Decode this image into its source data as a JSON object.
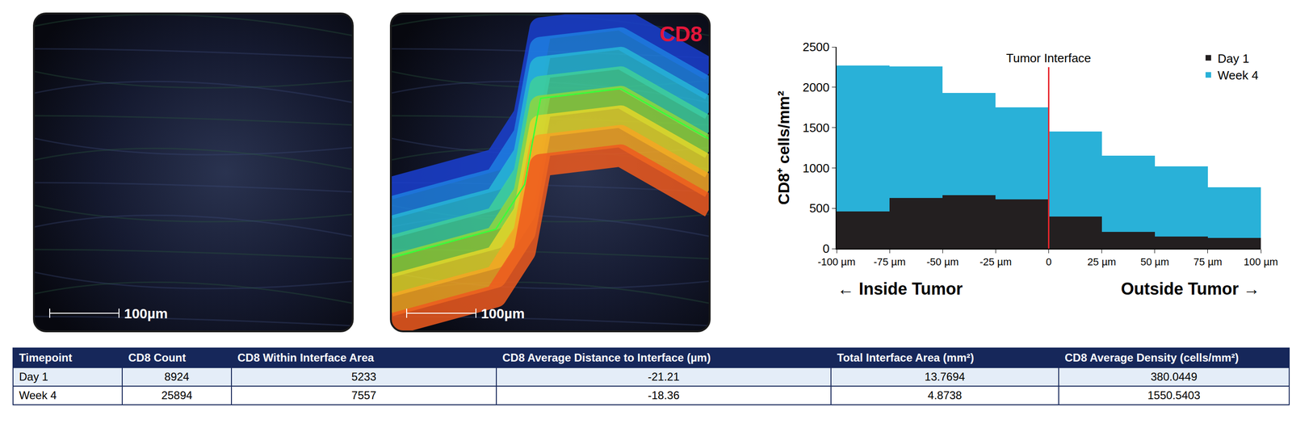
{
  "images": [
    {
      "scale_bar": "100µm"
    },
    {
      "label": "CD8",
      "scale_bar": "100µm"
    }
  ],
  "chart_data": {
    "type": "histogram",
    "bins": [
      -100,
      -75,
      -50,
      -25,
      0,
      25,
      50,
      75,
      100
    ],
    "series": [
      {
        "name": "Day 1",
        "color": "#231f20",
        "values": [
          460,
          630,
          660,
          610,
          400,
          210,
          150,
          130
        ]
      },
      {
        "name": "Week 4",
        "color": "#29b1d8",
        "values": [
          2270,
          2260,
          1930,
          1750,
          1450,
          1150,
          1020,
          760
        ]
      }
    ],
    "ylabel": "CD8⁺ cells/mm²",
    "xlabel_left": "← Inside Tumor",
    "xlabel_right": "Outside Tumor →",
    "annotations": [
      {
        "text": "Tumor Interface",
        "x": 0,
        "color": "#e8262d"
      }
    ],
    "xlim": [
      -100,
      100
    ],
    "xticks": [
      {
        "value": -100,
        "label": "-100 µm"
      },
      {
        "value": -75,
        "label": "-75 µm"
      },
      {
        "value": -50,
        "label": "-50 µm"
      },
      {
        "value": -25,
        "label": "-25 µm"
      },
      0,
      {
        "value": 25,
        "label": "25 µm"
      },
      {
        "value": 50,
        "label": "50 µm"
      },
      {
        "value": 75,
        "label": "75 µm"
      },
      {
        "value": 100,
        "label": "100 µm"
      }
    ],
    "ylim": [
      0,
      2500
    ],
    "yticks": [
      0,
      500,
      1000,
      1500,
      2000,
      2500
    ],
    "legend": "top right",
    "grid": false
  },
  "table": {
    "header": [
      "Timepoint",
      "CD8 Count",
      "CD8 Within Interface Area",
      "CD8 Average Distance to Interface (µm)",
      "Total Interface Area (mm²)",
      "CD8 Average Density (cells/mm²)"
    ],
    "rows": [
      [
        "Day 1",
        "8924",
        "5233",
        "-21.21",
        "13.7694",
        "380.0449"
      ],
      [
        "Week 4",
        "25894",
        "7557",
        "-18.36",
        "4.8738",
        "1550.5403"
      ]
    ]
  }
}
